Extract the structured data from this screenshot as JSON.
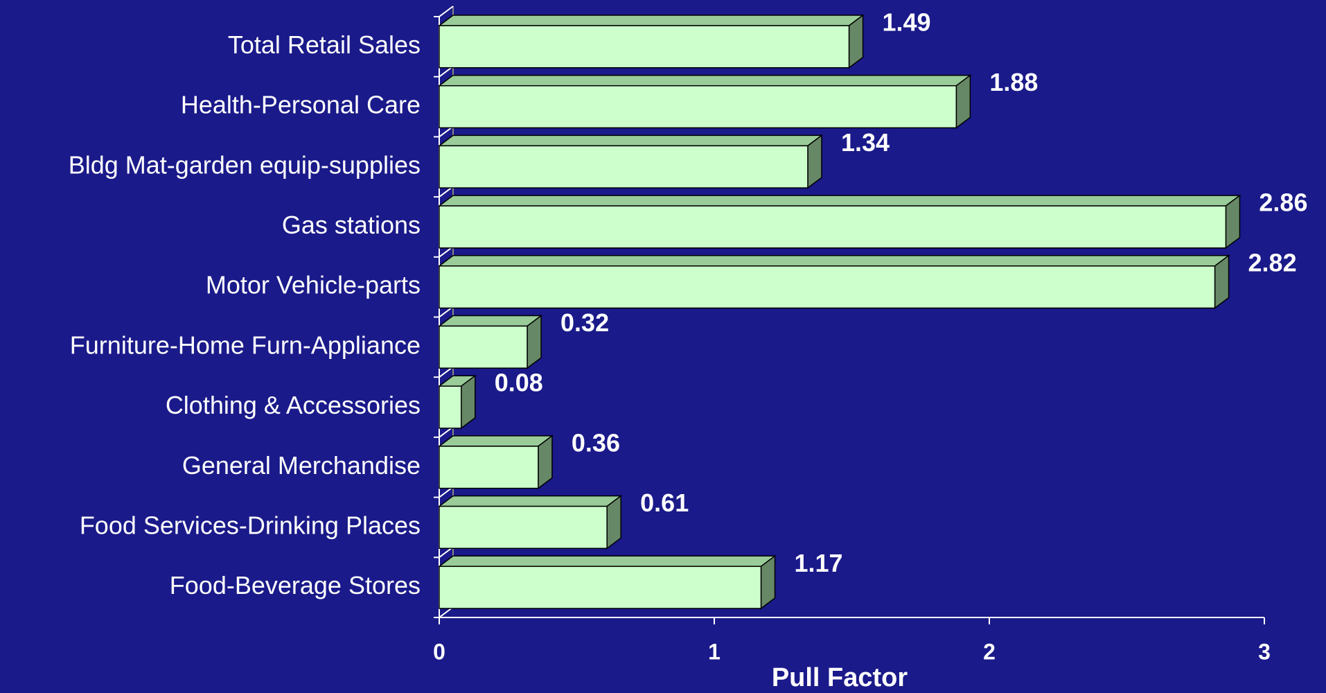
{
  "chart_data": {
    "type": "bar",
    "orientation": "horizontal",
    "categories": [
      "Total Retail Sales",
      "Health-Personal Care",
      "Bldg Mat-garden equip-supplies",
      "Gas stations",
      "Motor Vehicle-parts",
      "Furniture-Home Furn-Appliance",
      "Clothing & Accessories",
      "General Merchandise",
      "Food Services-Drinking Places",
      "Food-Beverage Stores"
    ],
    "values": [
      1.49,
      1.88,
      1.34,
      2.86,
      2.82,
      0.32,
      0.08,
      0.36,
      0.61,
      1.17
    ],
    "color": "#ccffcc",
    "xlim": [
      0,
      3
    ],
    "xticks": [
      0,
      1,
      2,
      3
    ],
    "x_label": "Pull Factor"
  }
}
